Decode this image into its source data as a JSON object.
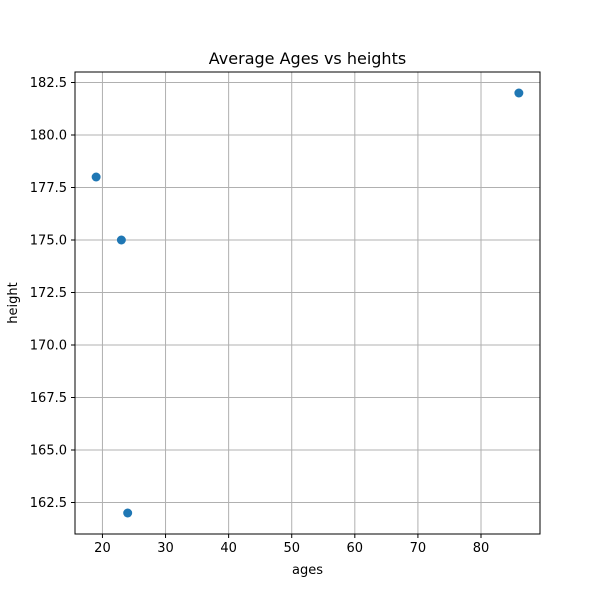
{
  "chart_data": {
    "type": "scatter",
    "title": "Average Ages vs heights",
    "xlabel": "ages",
    "ylabel": "height",
    "xlim": [
      15.65,
      89.35
    ],
    "ylim": [
      161,
      183
    ],
    "x_ticks": [
      20,
      30,
      40,
      50,
      60,
      70,
      80
    ],
    "y_ticks": [
      162.5,
      165.0,
      167.5,
      170.0,
      172.5,
      175.0,
      177.5,
      180.0,
      182.5
    ],
    "x_tick_labels": [
      "20",
      "30",
      "40",
      "50",
      "60",
      "70",
      "80"
    ],
    "y_tick_labels": [
      "162.5",
      "165.0",
      "167.5",
      "170.0",
      "172.5",
      "175.0",
      "177.5",
      "180.0",
      "182.5"
    ],
    "grid": true,
    "legend": "none",
    "color": "#1f77b4",
    "points": [
      {
        "x": 19,
        "y": 178
      },
      {
        "x": 23,
        "y": 175
      },
      {
        "x": 24,
        "y": 162
      },
      {
        "x": 86,
        "y": 182
      }
    ]
  }
}
